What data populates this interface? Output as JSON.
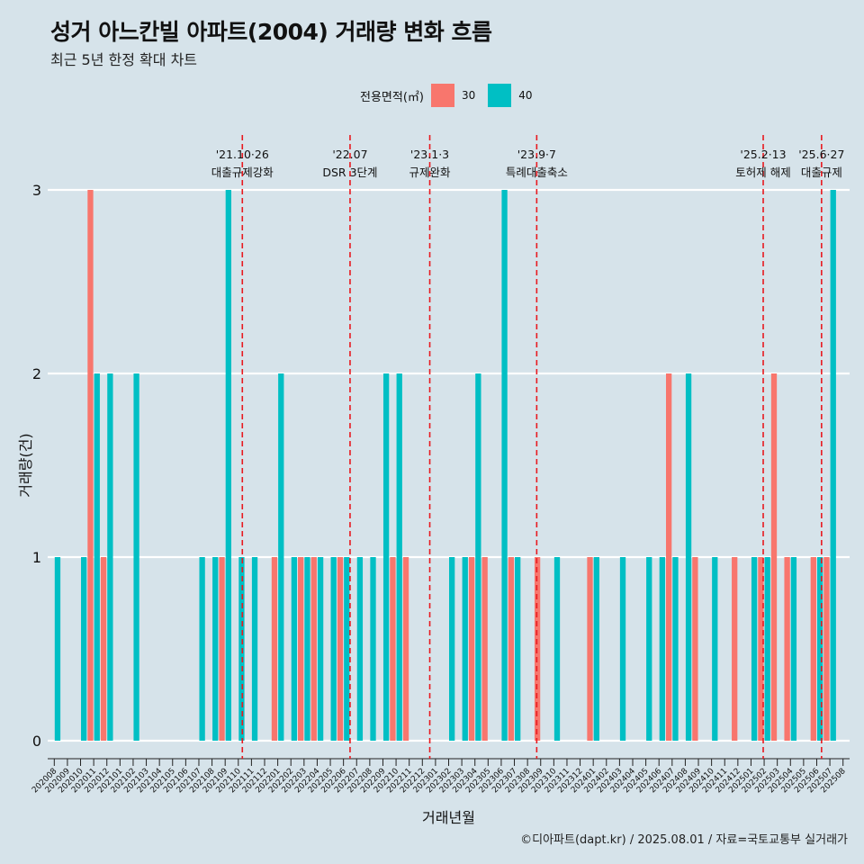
{
  "title": "성거 아느칸빌 아파트(2004) 거래량 변화 흐름",
  "subtitle": "최근 5년 한정 확대 차트",
  "caption": "©디아파트(dapt.kr) / 2025.08.01 / 자료=국토교통부 실거래가",
  "legend": {
    "title": "전용면적(㎡)",
    "items": [
      {
        "label": "30",
        "color": "#f8766d"
      },
      {
        "label": "40",
        "color": "#00bfc4"
      }
    ]
  },
  "chart_data": {
    "type": "bar",
    "xlabel": "거래년월",
    "ylabel": "거래량(건)",
    "ylim": [
      0,
      3
    ],
    "yticks": [
      "0",
      "1",
      "2",
      "3"
    ],
    "categories": [
      "202008",
      "202009",
      "202010",
      "202011",
      "202012",
      "202101",
      "202102",
      "202103",
      "202104",
      "202105",
      "202106",
      "202107",
      "202108",
      "202109",
      "202110",
      "202111",
      "202112",
      "202201",
      "202202",
      "202203",
      "202204",
      "202205",
      "202206",
      "202207",
      "202208",
      "202209",
      "202210",
      "202211",
      "202212",
      "202301",
      "202302",
      "202303",
      "202304",
      "202305",
      "202306",
      "202307",
      "202308",
      "202309",
      "202310",
      "202311",
      "202312",
      "202401",
      "202402",
      "202403",
      "202404",
      "202405",
      "202406",
      "202407",
      "202408",
      "202409",
      "202410",
      "202411",
      "202412",
      "202501",
      "202502",
      "202503",
      "202504",
      "202505",
      "202506",
      "202507",
      "202508"
    ],
    "bars": [
      {
        "month": "202008",
        "area": "40",
        "value": 1
      },
      {
        "month": "202010",
        "area": "40",
        "value": 1
      },
      {
        "month": "202011",
        "area": "30",
        "value": 3
      },
      {
        "month": "202011",
        "area": "40",
        "value": 2
      },
      {
        "month": "202012",
        "area": "30",
        "value": 1
      },
      {
        "month": "202012",
        "area": "40",
        "value": 2
      },
      {
        "month": "202102",
        "area": "40",
        "value": 2
      },
      {
        "month": "202107",
        "area": "40",
        "value": 1
      },
      {
        "month": "202108",
        "area": "40",
        "value": 1
      },
      {
        "month": "202109",
        "area": "30",
        "value": 1
      },
      {
        "month": "202109",
        "area": "40",
        "value": 3
      },
      {
        "month": "202110",
        "area": "40",
        "value": 1
      },
      {
        "month": "202111",
        "area": "40",
        "value": 1
      },
      {
        "month": "202201",
        "area": "30",
        "value": 1
      },
      {
        "month": "202201",
        "area": "40",
        "value": 2
      },
      {
        "month": "202202",
        "area": "40",
        "value": 1
      },
      {
        "month": "202203",
        "area": "30",
        "value": 1
      },
      {
        "month": "202203",
        "area": "40",
        "value": 1
      },
      {
        "month": "202204",
        "area": "30",
        "value": 1
      },
      {
        "month": "202204",
        "area": "40",
        "value": 1
      },
      {
        "month": "202205",
        "area": "40",
        "value": 1
      },
      {
        "month": "202206",
        "area": "30",
        "value": 1
      },
      {
        "month": "202206",
        "area": "40",
        "value": 1
      },
      {
        "month": "202207",
        "area": "40",
        "value": 1
      },
      {
        "month": "202208",
        "area": "40",
        "value": 1
      },
      {
        "month": "202209",
        "area": "40",
        "value": 2
      },
      {
        "month": "202210",
        "area": "30",
        "value": 1
      },
      {
        "month": "202210",
        "area": "40",
        "value": 2
      },
      {
        "month": "202211",
        "area": "30",
        "value": 1
      },
      {
        "month": "202302",
        "area": "40",
        "value": 1
      },
      {
        "month": "202303",
        "area": "40",
        "value": 1
      },
      {
        "month": "202304",
        "area": "30",
        "value": 1
      },
      {
        "month": "202304",
        "area": "40",
        "value": 2
      },
      {
        "month": "202305",
        "area": "30",
        "value": 1
      },
      {
        "month": "202306",
        "area": "40",
        "value": 3
      },
      {
        "month": "202307",
        "area": "30",
        "value": 1
      },
      {
        "month": "202307",
        "area": "40",
        "value": 1
      },
      {
        "month": "202309",
        "area": "30",
        "value": 1
      },
      {
        "month": "202310",
        "area": "40",
        "value": 1
      },
      {
        "month": "202401",
        "area": "30",
        "value": 1
      },
      {
        "month": "202401",
        "area": "40",
        "value": 1
      },
      {
        "month": "202403",
        "area": "40",
        "value": 1
      },
      {
        "month": "202405",
        "area": "40",
        "value": 1
      },
      {
        "month": "202406",
        "area": "40",
        "value": 1
      },
      {
        "month": "202407",
        "area": "30",
        "value": 2
      },
      {
        "month": "202407",
        "area": "40",
        "value": 1
      },
      {
        "month": "202408",
        "area": "40",
        "value": 2
      },
      {
        "month": "202409",
        "area": "30",
        "value": 1
      },
      {
        "month": "202410",
        "area": "40",
        "value": 1
      },
      {
        "month": "202412",
        "area": "30",
        "value": 1
      },
      {
        "month": "202501",
        "area": "40",
        "value": 1
      },
      {
        "month": "202502",
        "area": "30",
        "value": 1
      },
      {
        "month": "202502",
        "area": "40",
        "value": 1
      },
      {
        "month": "202503",
        "area": "30",
        "value": 2
      },
      {
        "month": "202504",
        "area": "30",
        "value": 1
      },
      {
        "month": "202504",
        "area": "40",
        "value": 1
      },
      {
        "month": "202506",
        "area": "30",
        "value": 1
      },
      {
        "month": "202506",
        "area": "40",
        "value": 1
      },
      {
        "month": "202507",
        "area": "30",
        "value": 1
      },
      {
        "month": "202507",
        "area": "40",
        "value": 3
      }
    ],
    "annotations": [
      {
        "date": "2021-10-26",
        "line1": "'21.10·26",
        "line2": "대출규제강화"
      },
      {
        "date": "2022-07-01",
        "line1": "'22.07",
        "line2": "DSR 3단계"
      },
      {
        "date": "2023-01-03",
        "line1": "'23.1·3",
        "line2": "규제완화"
      },
      {
        "date": "2023-09-07",
        "line1": "'23.9·7",
        "line2": "특례대출축소"
      },
      {
        "date": "2025-02-13",
        "line1": "'25.2·13",
        "line2": "토허제 해제"
      },
      {
        "date": "2025-06-27",
        "line1": "'25.6·27",
        "line2": "대출규제"
      }
    ]
  }
}
